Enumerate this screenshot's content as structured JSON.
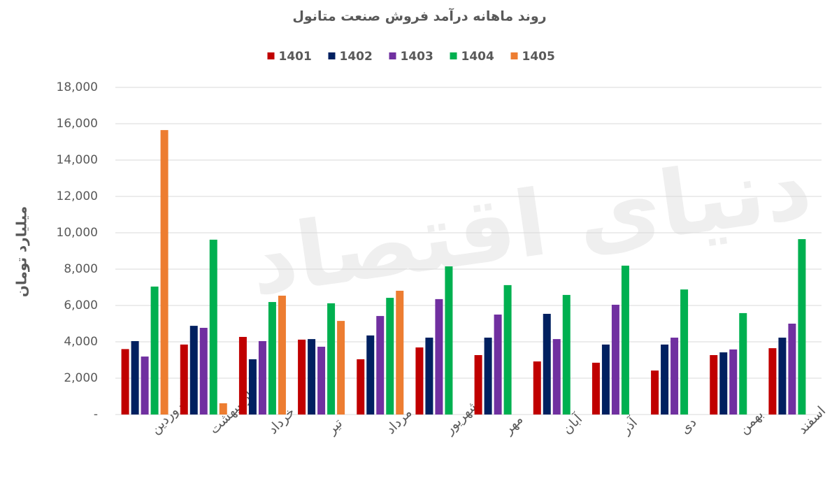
{
  "chart_data": {
    "type": "bar",
    "title": "روند ماهانه درآمد فروش صنعت متانول",
    "y_label": "میلیارد تومان",
    "watermark": "دنیای اقتصاد",
    "categories": [
      "فروردین",
      "اردیبهشت",
      "خرداد",
      "تیر",
      "مرداد",
      "شهریور",
      "مهر",
      "آبان",
      "آذر",
      "دی",
      "بهمن",
      "اسفند"
    ],
    "series": [
      {
        "name": "1401",
        "color": "#c00000",
        "values": [
          3600,
          3850,
          4270,
          4120,
          3040,
          3690,
          3270,
          2920,
          2850,
          2420,
          3270,
          3650
        ]
      },
      {
        "name": "1402",
        "color": "#002060",
        "values": [
          4040,
          4880,
          3040,
          4150,
          4350,
          4230,
          4230,
          5540,
          3850,
          3850,
          3420,
          4230
        ]
      },
      {
        "name": "1403",
        "color": "#7030a0",
        "values": [
          3190,
          4770,
          4040,
          3730,
          5420,
          6350,
          5500,
          4150,
          6040,
          4230,
          3580,
          5000
        ]
      },
      {
        "name": "1404",
        "color": "#00b050",
        "values": [
          7040,
          9620,
          6190,
          6120,
          6420,
          8150,
          7120,
          6580,
          8190,
          6880,
          5580,
          9650
        ]
      },
      {
        "name": "1405",
        "color": "#ed7d31",
        "values": [
          15650,
          620,
          6540,
          5150,
          6810,
          null,
          null,
          null,
          null,
          null,
          null,
          null
        ]
      }
    ],
    "ylim": [
      0,
      18000
    ],
    "yticks": [
      {
        "value": 0,
        "label": "-"
      },
      {
        "value": 2000,
        "label": "2,000"
      },
      {
        "value": 4000,
        "label": "4,000"
      },
      {
        "value": 6000,
        "label": "6,000"
      },
      {
        "value": 8000,
        "label": "8,000"
      },
      {
        "value": 10000,
        "label": "10,000"
      },
      {
        "value": 12000,
        "label": "12,000"
      },
      {
        "value": 14000,
        "label": "14,000"
      },
      {
        "value": 16000,
        "label": "16,000"
      },
      {
        "value": 18000,
        "label": "18,000"
      }
    ],
    "grid": true,
    "legend": "top"
  }
}
